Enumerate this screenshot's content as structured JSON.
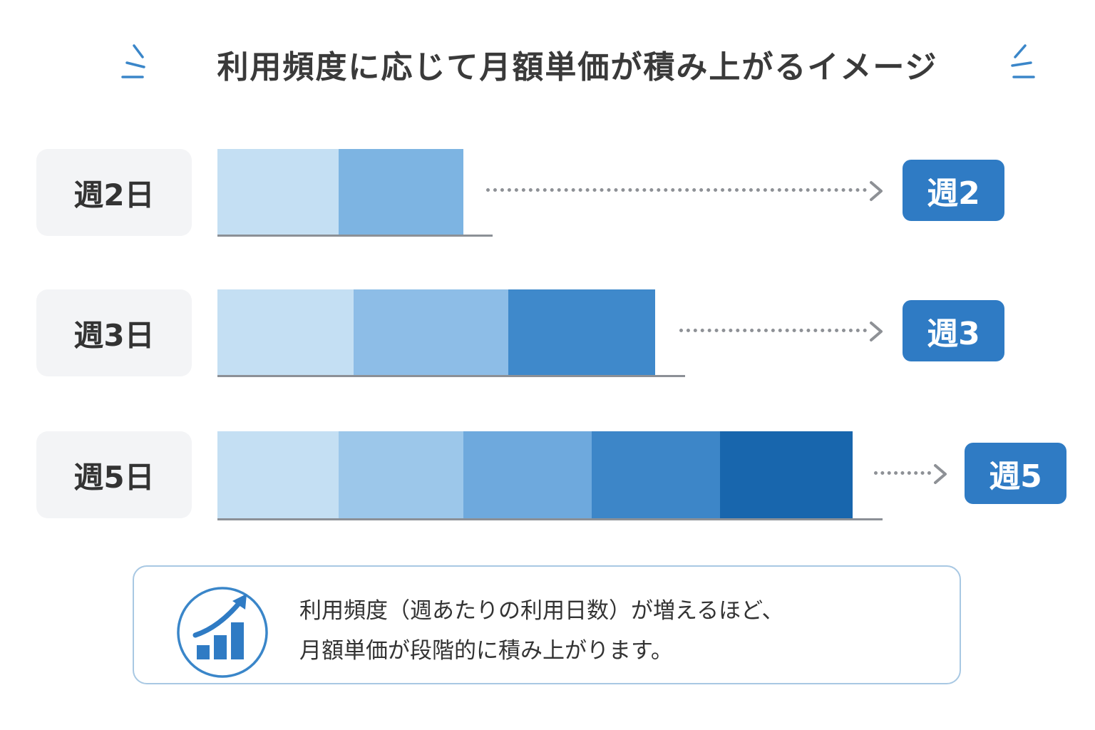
{
  "title": "利用頻度に応じて月額単価が積み上がるイメージ",
  "rows": [
    {
      "label": "週2日",
      "badge": "週2",
      "segments": 2
    },
    {
      "label": "週3日",
      "badge": "週3",
      "segments": 3
    },
    {
      "label": "週5日",
      "badge": "週5",
      "segments": 5
    }
  ],
  "colors": {
    "segment_shades": [
      "#c4dff3",
      "#9cc7ea",
      "#6ea9dd",
      "#3d86c8",
      "#1866ad"
    ],
    "badge": "#2f7bc4",
    "label_background": "#f3f4f6",
    "note_border": "#a8c8e3"
  },
  "note": {
    "icon": "rising-bar-chart-icon",
    "line1": "利用頻度（週あたりの利用日数）が増えるほど、",
    "line2": "月額単価が段階的に積み上がります。"
  },
  "decor_icon": "sparkle-lines-icon"
}
